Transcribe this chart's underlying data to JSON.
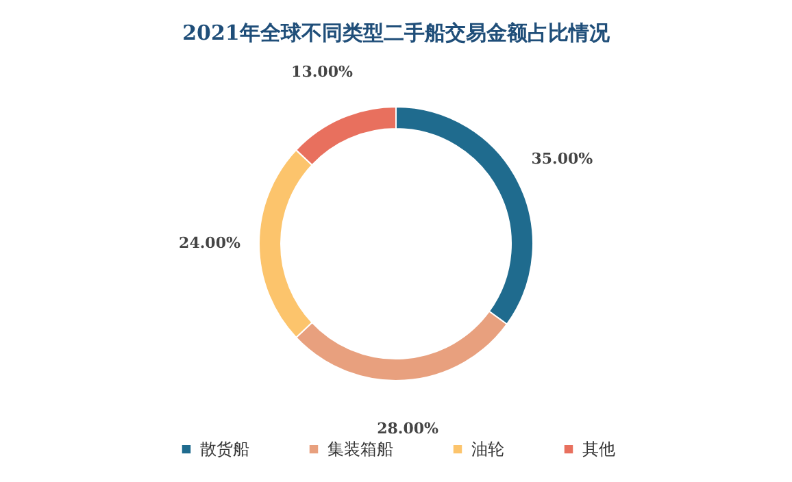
{
  "chart_data": {
    "type": "donut",
    "title": "2021年全球不同类型二手船交易金额占比情况",
    "categories": [
      "散货船",
      "集装箱船",
      "油轮",
      "其他"
    ],
    "values": [
      35,
      28,
      24,
      13
    ],
    "colors": [
      "#1f6b8e",
      "#e8a07e",
      "#fcc46c",
      "#e8705e"
    ],
    "value_labels": [
      "35.00%",
      "28.00%",
      "24.00%",
      "13.00%"
    ],
    "legend": "bottom"
  }
}
